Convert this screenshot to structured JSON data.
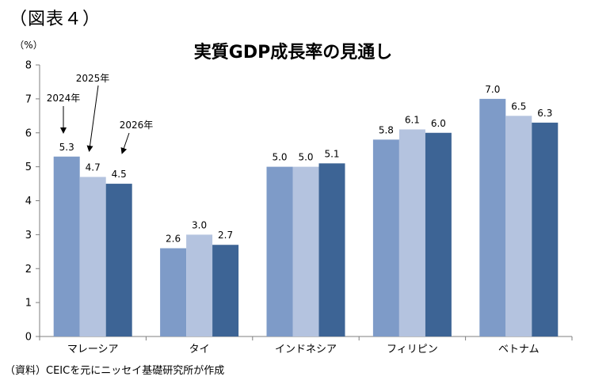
{
  "figure_label": "（図表４）",
  "source_note": "（資料）CEICを元にニッセイ基礎研究所が作成",
  "colors": {
    "2024年": "#7E9BC8",
    "2025年": "#B4C3DF",
    "2026年": "#3D6495",
    "axis": "#7f7f7f"
  },
  "chart_data": {
    "type": "bar",
    "title": "実質GDP成長率の見通し",
    "ylabel": "（%）",
    "xlabel": "",
    "ylim": [
      0,
      8
    ],
    "yticks": [
      0,
      1,
      2,
      3,
      4,
      5,
      6,
      7,
      8
    ],
    "grid": false,
    "legend": "none (series labeled by annotations over first group)",
    "categories": [
      "マレーシア",
      "タイ",
      "インドネシア",
      "フィリピン",
      "ベトナム"
    ],
    "series": [
      {
        "name": "2024年",
        "values": [
          5.3,
          2.6,
          5.0,
          5.8,
          7.0
        ]
      },
      {
        "name": "2025年",
        "values": [
          4.7,
          3.0,
          5.0,
          6.1,
          6.5
        ]
      },
      {
        "name": "2026年",
        "values": [
          4.5,
          2.7,
          5.1,
          6.0,
          6.3
        ]
      }
    ],
    "value_labels": [
      [
        "5.3",
        "2.6",
        "5.0",
        "5.8",
        "7.0"
      ],
      [
        "4.7",
        "3.0",
        "5.0",
        "6.1",
        "6.5"
      ],
      [
        "4.5",
        "2.7",
        "5.1",
        "6.0",
        "6.3"
      ]
    ]
  }
}
